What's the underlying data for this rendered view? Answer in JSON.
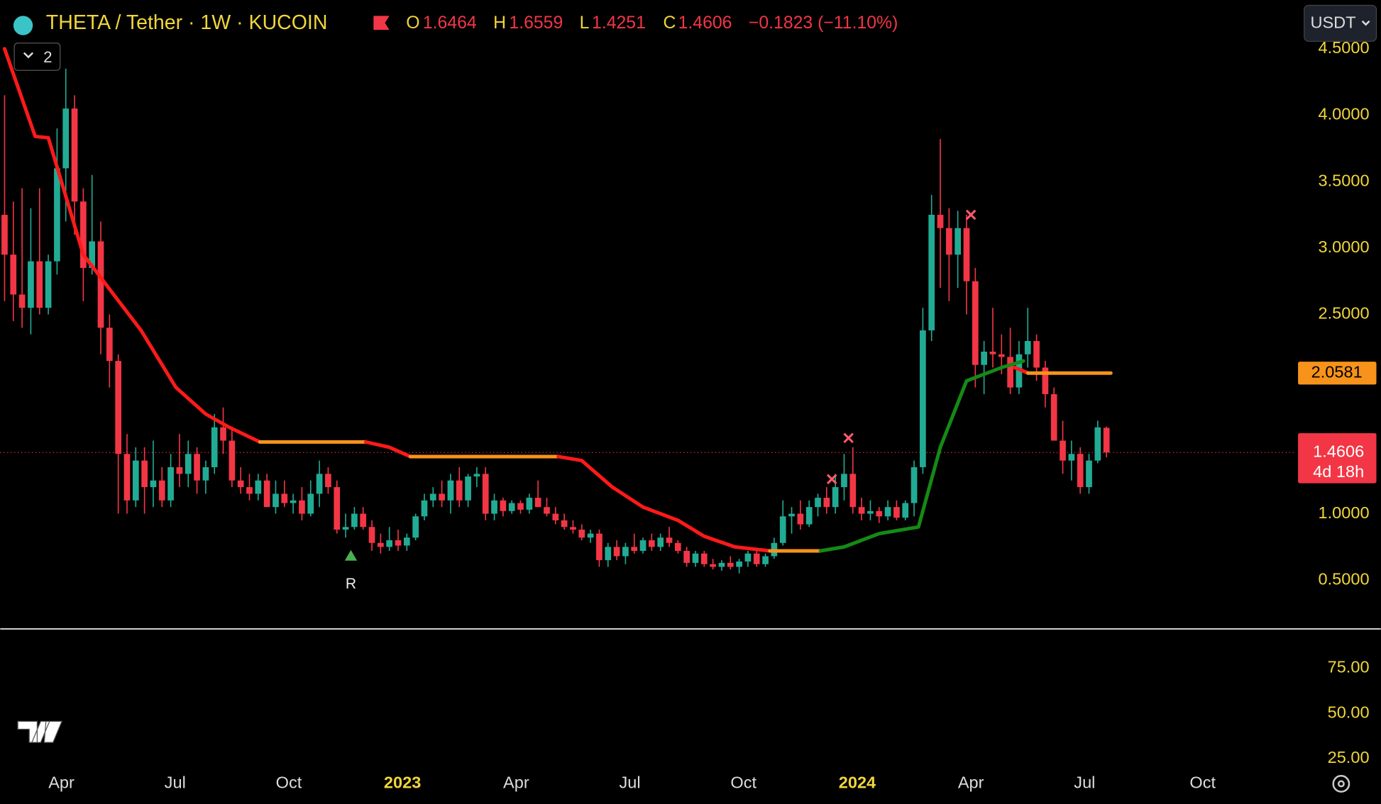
{
  "header": {
    "symbol": "THETA / Tether · 1W · KUCOIN",
    "o_label": "O",
    "o": "1.6464",
    "h_label": "H",
    "h": "1.6559",
    "l_label": "L",
    "l": "1.4251",
    "c_label": "C",
    "c": "1.4606",
    "change": "−0.1823 (−11.10%)",
    "layers": "2",
    "currency": "USDT"
  },
  "chart_data": {
    "type": "candlestick",
    "up_color": "#22ab94",
    "down_color": "#f23645",
    "xlim": [
      -0.5,
      147.5
    ],
    "ylim": [
      0.139,
      4.867
    ],
    "xticks": [
      {
        "value": 6.5,
        "label": "Apr"
      },
      {
        "value": 19.5,
        "label": "Jul"
      },
      {
        "value": 32.5,
        "label": "Oct"
      },
      {
        "value": 45.5,
        "label": "2023"
      },
      {
        "value": 58.5,
        "label": "Apr"
      },
      {
        "value": 71.5,
        "label": "Jul"
      },
      {
        "value": 84.5,
        "label": "Oct"
      },
      {
        "value": 97.5,
        "label": "2024"
      },
      {
        "value": 110.5,
        "label": "Apr"
      },
      {
        "value": 123.5,
        "label": "Jul"
      },
      {
        "value": 137,
        "label": "Oct"
      }
    ],
    "yticks": [
      {
        "value": 0.5,
        "label": "0.5000"
      },
      {
        "value": 1,
        "label": "1.0000"
      },
      {
        "value": 2.5,
        "label": "2.5000"
      },
      {
        "value": 3,
        "label": "3.0000"
      },
      {
        "value": 3.5,
        "label": "3.5000"
      },
      {
        "value": 4,
        "label": "4.0000"
      },
      {
        "value": 4.5,
        "label": "4.5000"
      }
    ],
    "candles": [
      [
        3.25,
        4.15,
        2.6,
        2.95
      ],
      [
        2.95,
        3.35,
        2.45,
        2.65
      ],
      [
        2.65,
        3.45,
        2.4,
        2.55
      ],
      [
        2.55,
        3.3,
        2.35,
        2.9
      ],
      [
        2.9,
        3.45,
        2.5,
        2.55
      ],
      [
        2.55,
        2.95,
        2.5,
        2.9
      ],
      [
        2.9,
        3.9,
        2.8,
        3.6
      ],
      [
        3.6,
        4.35,
        3.2,
        4.05
      ],
      [
        4.05,
        4.15,
        3.1,
        3.35
      ],
      [
        3.35,
        3.45,
        2.6,
        2.85
      ],
      [
        2.85,
        3.55,
        2.8,
        3.05
      ],
      [
        3.05,
        3.2,
        2.2,
        2.4
      ],
      [
        2.4,
        2.5,
        1.95,
        2.15
      ],
      [
        2.15,
        2.2,
        1.0,
        1.45
      ],
      [
        1.45,
        1.6,
        1.0,
        1.1
      ],
      [
        1.1,
        1.5,
        1.05,
        1.4
      ],
      [
        1.4,
        1.5,
        1.0,
        1.2
      ],
      [
        1.2,
        1.55,
        1.05,
        1.25
      ],
      [
        1.25,
        1.35,
        1.05,
        1.1
      ],
      [
        1.1,
        1.45,
        1.05,
        1.35
      ],
      [
        1.35,
        1.6,
        1.2,
        1.3
      ],
      [
        1.3,
        1.55,
        1.2,
        1.45
      ],
      [
        1.45,
        1.5,
        1.15,
        1.25
      ],
      [
        1.25,
        1.4,
        1.15,
        1.35
      ],
      [
        1.35,
        1.75,
        1.3,
        1.65
      ],
      [
        1.65,
        1.8,
        1.45,
        1.55
      ],
      [
        1.55,
        1.65,
        1.2,
        1.25
      ],
      [
        1.25,
        1.35,
        1.15,
        1.2
      ],
      [
        1.2,
        1.3,
        1.1,
        1.15
      ],
      [
        1.15,
        1.3,
        1.1,
        1.25
      ],
      [
        1.25,
        1.3,
        1.05,
        1.05
      ],
      [
        1.05,
        1.25,
        1.0,
        1.15
      ],
      [
        1.15,
        1.25,
        1.05,
        1.08
      ],
      [
        1.08,
        1.15,
        1.0,
        1.1
      ],
      [
        1.1,
        1.2,
        0.95,
        1.0
      ],
      [
        1.0,
        1.25,
        0.98,
        1.15
      ],
      [
        1.15,
        1.4,
        1.05,
        1.3
      ],
      [
        1.3,
        1.35,
        1.15,
        1.2
      ],
      [
        1.2,
        1.25,
        0.85,
        0.88
      ],
      [
        0.88,
        1.0,
        0.82,
        0.9
      ],
      [
        0.9,
        1.05,
        0.88,
        1.0
      ],
      [
        1.0,
        1.05,
        0.88,
        0.9
      ],
      [
        0.9,
        0.95,
        0.72,
        0.78
      ],
      [
        0.78,
        0.85,
        0.7,
        0.75
      ],
      [
        0.75,
        0.9,
        0.72,
        0.8
      ],
      [
        0.8,
        0.88,
        0.72,
        0.76
      ],
      [
        0.76,
        0.85,
        0.72,
        0.82
      ],
      [
        0.82,
        1.0,
        0.8,
        0.98
      ],
      [
        0.98,
        1.15,
        0.95,
        1.1
      ],
      [
        1.1,
        1.2,
        1.05,
        1.15
      ],
      [
        1.15,
        1.25,
        1.05,
        1.1
      ],
      [
        1.1,
        1.3,
        1.0,
        1.25
      ],
      [
        1.25,
        1.35,
        1.05,
        1.1
      ],
      [
        1.1,
        1.3,
        1.05,
        1.28
      ],
      [
        1.28,
        1.35,
        1.2,
        1.3
      ],
      [
        1.3,
        1.35,
        0.95,
        1.0
      ],
      [
        1.0,
        1.15,
        0.95,
        1.1
      ],
      [
        1.1,
        1.12,
        0.98,
        1.02
      ],
      [
        1.02,
        1.1,
        1.0,
        1.08
      ],
      [
        1.08,
        1.1,
        1.0,
        1.03
      ],
      [
        1.03,
        1.15,
        1.0,
        1.12
      ],
      [
        1.12,
        1.25,
        1.05,
        1.05
      ],
      [
        1.05,
        1.12,
        0.98,
        1.0
      ],
      [
        1.0,
        1.05,
        0.92,
        0.95
      ],
      [
        0.95,
        1.0,
        0.88,
        0.9
      ],
      [
        0.9,
        0.95,
        0.85,
        0.88
      ],
      [
        0.88,
        0.92,
        0.8,
        0.82
      ],
      [
        0.82,
        0.88,
        0.78,
        0.85
      ],
      [
        0.85,
        0.88,
        0.6,
        0.65
      ],
      [
        0.65,
        0.78,
        0.6,
        0.75
      ],
      [
        0.75,
        0.8,
        0.65,
        0.68
      ],
      [
        0.68,
        0.78,
        0.62,
        0.75
      ],
      [
        0.75,
        0.85,
        0.7,
        0.72
      ],
      [
        0.72,
        0.82,
        0.7,
        0.8
      ],
      [
        0.8,
        0.85,
        0.72,
        0.75
      ],
      [
        0.75,
        0.85,
        0.72,
        0.82
      ],
      [
        0.82,
        0.9,
        0.75,
        0.78
      ],
      [
        0.78,
        0.8,
        0.7,
        0.72
      ],
      [
        0.72,
        0.75,
        0.6,
        0.63
      ],
      [
        0.63,
        0.72,
        0.6,
        0.7
      ],
      [
        0.7,
        0.72,
        0.6,
        0.62
      ],
      [
        0.62,
        0.66,
        0.58,
        0.6
      ],
      [
        0.6,
        0.65,
        0.57,
        0.63
      ],
      [
        0.63,
        0.68,
        0.58,
        0.6
      ],
      [
        0.6,
        0.66,
        0.55,
        0.64
      ],
      [
        0.64,
        0.72,
        0.6,
        0.7
      ],
      [
        0.7,
        0.72,
        0.6,
        0.62
      ],
      [
        0.62,
        0.7,
        0.6,
        0.68
      ],
      [
        0.68,
        0.82,
        0.66,
        0.78
      ],
      [
        0.78,
        1.1,
        0.76,
        0.98
      ],
      [
        0.98,
        1.05,
        0.85,
        1.0
      ],
      [
        1.0,
        1.1,
        0.88,
        0.92
      ],
      [
        0.92,
        1.1,
        0.9,
        1.05
      ],
      [
        1.05,
        1.15,
        0.98,
        1.12
      ],
      [
        1.12,
        1.2,
        1.0,
        1.05
      ],
      [
        1.05,
        1.3,
        1.0,
        1.2
      ],
      [
        1.2,
        1.45,
        1.1,
        1.3
      ],
      [
        1.3,
        1.5,
        1.0,
        1.05
      ],
      [
        1.05,
        1.12,
        0.95,
        1.0
      ],
      [
        1.0,
        1.1,
        0.95,
        1.02
      ],
      [
        1.02,
        1.05,
        0.93,
        0.98
      ],
      [
        0.98,
        1.1,
        0.95,
        1.05
      ],
      [
        1.05,
        1.1,
        0.95,
        0.97
      ],
      [
        0.97,
        1.1,
        0.95,
        1.08
      ],
      [
        1.08,
        1.4,
        0.98,
        1.35
      ],
      [
        1.35,
        2.55,
        1.3,
        2.38
      ],
      [
        2.38,
        3.4,
        2.3,
        3.25
      ],
      [
        3.25,
        3.82,
        2.7,
        3.15
      ],
      [
        3.15,
        3.3,
        2.6,
        2.95
      ],
      [
        2.95,
        3.28,
        2.7,
        3.15
      ],
      [
        3.15,
        3.25,
        2.5,
        2.75
      ],
      [
        2.75,
        2.85,
        1.95,
        2.12
      ],
      [
        2.12,
        2.3,
        1.9,
        2.22
      ],
      [
        2.22,
        2.55,
        2.1,
        2.2
      ],
      [
        2.2,
        2.35,
        2.05,
        2.18
      ],
      [
        2.18,
        2.4,
        1.9,
        1.95
      ],
      [
        1.95,
        2.3,
        1.9,
        2.2
      ],
      [
        2.2,
        2.55,
        2.1,
        2.3
      ],
      [
        2.3,
        2.35,
        2.0,
        2.1
      ],
      [
        2.1,
        2.15,
        1.8,
        1.9
      ],
      [
        1.9,
        1.95,
        1.55,
        1.55
      ],
      [
        1.55,
        1.7,
        1.3,
        1.4
      ],
      [
        1.4,
        1.55,
        1.25,
        1.45
      ],
      [
        1.45,
        1.5,
        1.15,
        1.2
      ],
      [
        1.2,
        1.45,
        1.15,
        1.4
      ],
      [
        1.4,
        1.7,
        1.38,
        1.65
      ],
      [
        1.6464,
        1.6559,
        1.4251,
        1.4606
      ]
    ],
    "lines": [
      {
        "color": "#ff1a1a",
        "x": [
          0,
          3.5,
          5,
          9,
          15.6,
          19.6,
          23,
          25.7,
          29.2
        ],
        "values": [
          4.5,
          3.84,
          3.83,
          2.95,
          2.38,
          1.95,
          1.75,
          1.65,
          1.54
        ]
      },
      {
        "color": "#f7931a",
        "x": [
          29.2,
          41.3
        ],
        "values": [
          1.54,
          1.54
        ]
      },
      {
        "color": "#ff1a1a",
        "x": [
          41.3,
          44,
          46.4
        ],
        "values": [
          1.54,
          1.5,
          1.43
        ]
      },
      {
        "color": "#f7931a",
        "x": [
          46.4,
          63.3
        ],
        "values": [
          1.43,
          1.43
        ]
      },
      {
        "color": "#ff1a1a",
        "x": [
          63.3,
          66,
          69.5,
          73,
          77,
          80,
          83.5,
          87.5
        ],
        "values": [
          1.43,
          1.4,
          1.2,
          1.05,
          0.95,
          0.83,
          0.75,
          0.72
        ]
      },
      {
        "color": "#f7931a",
        "x": [
          87.5,
          93.3
        ],
        "values": [
          0.72,
          0.72
        ]
      },
      {
        "color": "#158a15",
        "x": [
          93.3,
          96,
          100,
          104.5,
          107,
          110,
          114,
          116.5
        ],
        "values": [
          0.72,
          0.75,
          0.85,
          0.9,
          1.5,
          2.0,
          2.1,
          2.15
        ]
      },
      {
        "color": "#ff1a1a",
        "x": [
          115.5,
          117
        ],
        "values": [
          2.1,
          2.06
        ]
      },
      {
        "color": "#f7931a",
        "x": [
          117,
          126.5
        ],
        "values": [
          2.0581,
          2.0581
        ]
      }
    ],
    "markers": [
      {
        "type": "cross",
        "x": 94.6,
        "value": 1.26
      },
      {
        "type": "cross",
        "x": 96.5,
        "value": 1.57
      },
      {
        "type": "cross",
        "x": 110.5,
        "value": 3.25
      },
      {
        "type": "triangle",
        "x": 39.6,
        "value": 0.68,
        "label": "R"
      }
    ],
    "level": {
      "value": 2.0581,
      "label": "2.0581"
    },
    "last_price": {
      "value": 1.4606,
      "label": "1.4606",
      "countdown": "4d 18h"
    },
    "lower_pane": {
      "ylim": [
        21.2,
        96.2
      ],
      "yticks": [
        {
          "value": 75,
          "label": "75.00"
        },
        {
          "value": 50,
          "label": "50.00"
        },
        {
          "value": 25,
          "label": "25.00"
        }
      ]
    }
  }
}
